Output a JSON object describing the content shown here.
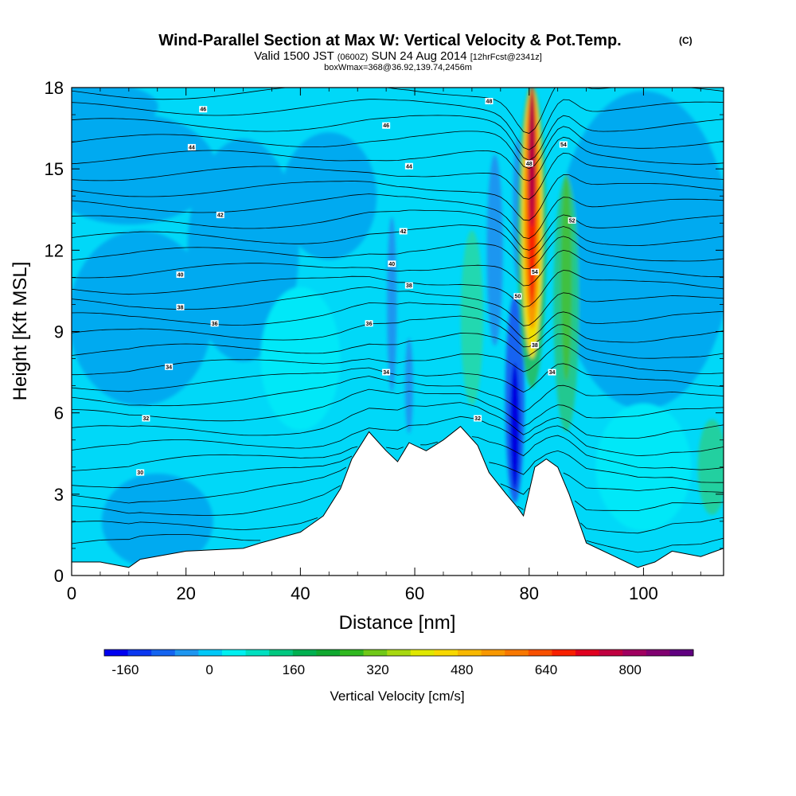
{
  "title": {
    "main": "Wind-Parallel Section at Max W: Vertical Velocity & Pot.Temp.",
    "copyright": "(C)",
    "valid_prefix": "Valid 1500 JST",
    "valid_utc": "(0600Z)",
    "valid_date": "SUN 24 Aug 2014",
    "forecast": "[12hrFcst@2341z]",
    "box_info": "boxWmax=368@36.92,139.74,2456m"
  },
  "chart_data": {
    "type": "heatmap",
    "xlabel": "Distance [nm]",
    "ylabel": "Height [Kft MSL]",
    "xlim": [
      0,
      114
    ],
    "ylim": [
      0,
      18
    ],
    "x_ticks": [
      "0",
      "20",
      "40",
      "60",
      "80",
      "100"
    ],
    "x_tick_values": [
      0,
      20,
      40,
      60,
      80,
      100
    ],
    "y_ticks": [
      "0",
      "3",
      "6",
      "9",
      "12",
      "15",
      "18"
    ],
    "y_tick_values": [
      0,
      3,
      6,
      9,
      12,
      15,
      18
    ],
    "colorbar": {
      "label": "Vertical Velocity [cm/s]",
      "tick_labels": [
        "-160",
        "0",
        "160",
        "320",
        "480",
        "640",
        "800"
      ],
      "tick_values": [
        -160,
        0,
        160,
        320,
        480,
        640,
        800
      ],
      "range": [
        -200,
        920
      ],
      "colors": [
        "#0000f0",
        "#0a37f0",
        "#1464f0",
        "#1e96f0",
        "#00c8f8",
        "#00f0f0",
        "#00e0c0",
        "#00c880",
        "#00b050",
        "#10a830",
        "#30b820",
        "#70c818",
        "#a8d810",
        "#e0e800",
        "#f8d800",
        "#f8b800",
        "#f89800",
        "#f87800",
        "#f85000",
        "#f82000",
        "#e00020",
        "#c00040",
        "#a00060",
        "#800070",
        "#600080"
      ]
    },
    "vertical_velocity_features": [
      {
        "kind": "background_weak_descent",
        "value": -40
      },
      {
        "kind": "updraft_core",
        "x": 80,
        "y_range": [
          8,
          18
        ],
        "max_value": 800
      },
      {
        "kind": "secondary_updraft",
        "x": 86.5,
        "y_range": [
          5,
          15
        ],
        "max_value": 160
      },
      {
        "kind": "downdraft",
        "x": 77.5,
        "y_range": [
          2,
          10
        ],
        "min_value": -200
      },
      {
        "kind": "weak_updraft",
        "x": 70,
        "y_range": [
          6,
          13
        ],
        "max_value": 80
      }
    ],
    "terrain": [
      [
        0,
        0.5
      ],
      [
        5,
        0.5
      ],
      [
        10,
        0.3
      ],
      [
        12,
        0.6
      ],
      [
        20,
        0.9
      ],
      [
        30,
        1.0
      ],
      [
        33,
        1.2
      ],
      [
        40,
        1.6
      ],
      [
        44,
        2.2
      ],
      [
        47,
        3.2
      ],
      [
        49,
        4.3
      ],
      [
        52,
        5.3
      ],
      [
        55,
        4.6
      ],
      [
        57,
        4.2
      ],
      [
        59,
        4.9
      ],
      [
        62,
        4.6
      ],
      [
        65,
        5.0
      ],
      [
        68,
        5.5
      ],
      [
        71,
        4.8
      ],
      [
        73,
        3.8
      ],
      [
        76,
        3.0
      ],
      [
        78,
        2.5
      ],
      [
        79,
        2.2
      ],
      [
        81,
        4.0
      ],
      [
        83,
        4.3
      ],
      [
        85,
        4.0
      ],
      [
        87,
        3.0
      ],
      [
        90,
        1.2
      ],
      [
        95,
        0.7
      ],
      [
        99,
        0.3
      ],
      [
        102,
        0.5
      ],
      [
        105,
        0.9
      ],
      [
        110,
        0.7
      ],
      [
        114,
        1.0
      ]
    ],
    "potential_temperature_isolines": {
      "labels": [
        {
          "text": "46",
          "x": 23,
          "y": 17.2
        },
        {
          "text": "44",
          "x": 21,
          "y": 15.8
        },
        {
          "text": "48",
          "x": 73,
          "y": 17.5
        },
        {
          "text": "46",
          "x": 55,
          "y": 16.6
        },
        {
          "text": "44",
          "x": 59,
          "y": 15.1
        },
        {
          "text": "42",
          "x": 26,
          "y": 13.3
        },
        {
          "text": "42",
          "x": 58,
          "y": 12.7
        },
        {
          "text": "40",
          "x": 19,
          "y": 11.1
        },
        {
          "text": "40",
          "x": 56,
          "y": 11.5
        },
        {
          "text": "38",
          "x": 19,
          "y": 9.9
        },
        {
          "text": "38",
          "x": 59,
          "y": 10.7
        },
        {
          "text": "36",
          "x": 25,
          "y": 9.3
        },
        {
          "text": "36",
          "x": 52,
          "y": 9.3
        },
        {
          "text": "34",
          "x": 17,
          "y": 7.7
        },
        {
          "text": "34",
          "x": 55,
          "y": 7.5
        },
        {
          "text": "32",
          "x": 13,
          "y": 5.8
        },
        {
          "text": "30",
          "x": 12,
          "y": 3.8
        },
        {
          "text": "32",
          "x": 71,
          "y": 5.8
        },
        {
          "text": "48",
          "x": 80,
          "y": 15.2
        },
        {
          "text": "54",
          "x": 86,
          "y": 15.9
        },
        {
          "text": "52",
          "x": 87.5,
          "y": 13.1
        },
        {
          "text": "54",
          "x": 81,
          "y": 11.2
        },
        {
          "text": "50",
          "x": 78,
          "y": 10.3
        },
        {
          "text": "38",
          "x": 81,
          "y": 8.5
        },
        {
          "text": "34",
          "x": 84,
          "y": 7.5
        }
      ]
    }
  }
}
